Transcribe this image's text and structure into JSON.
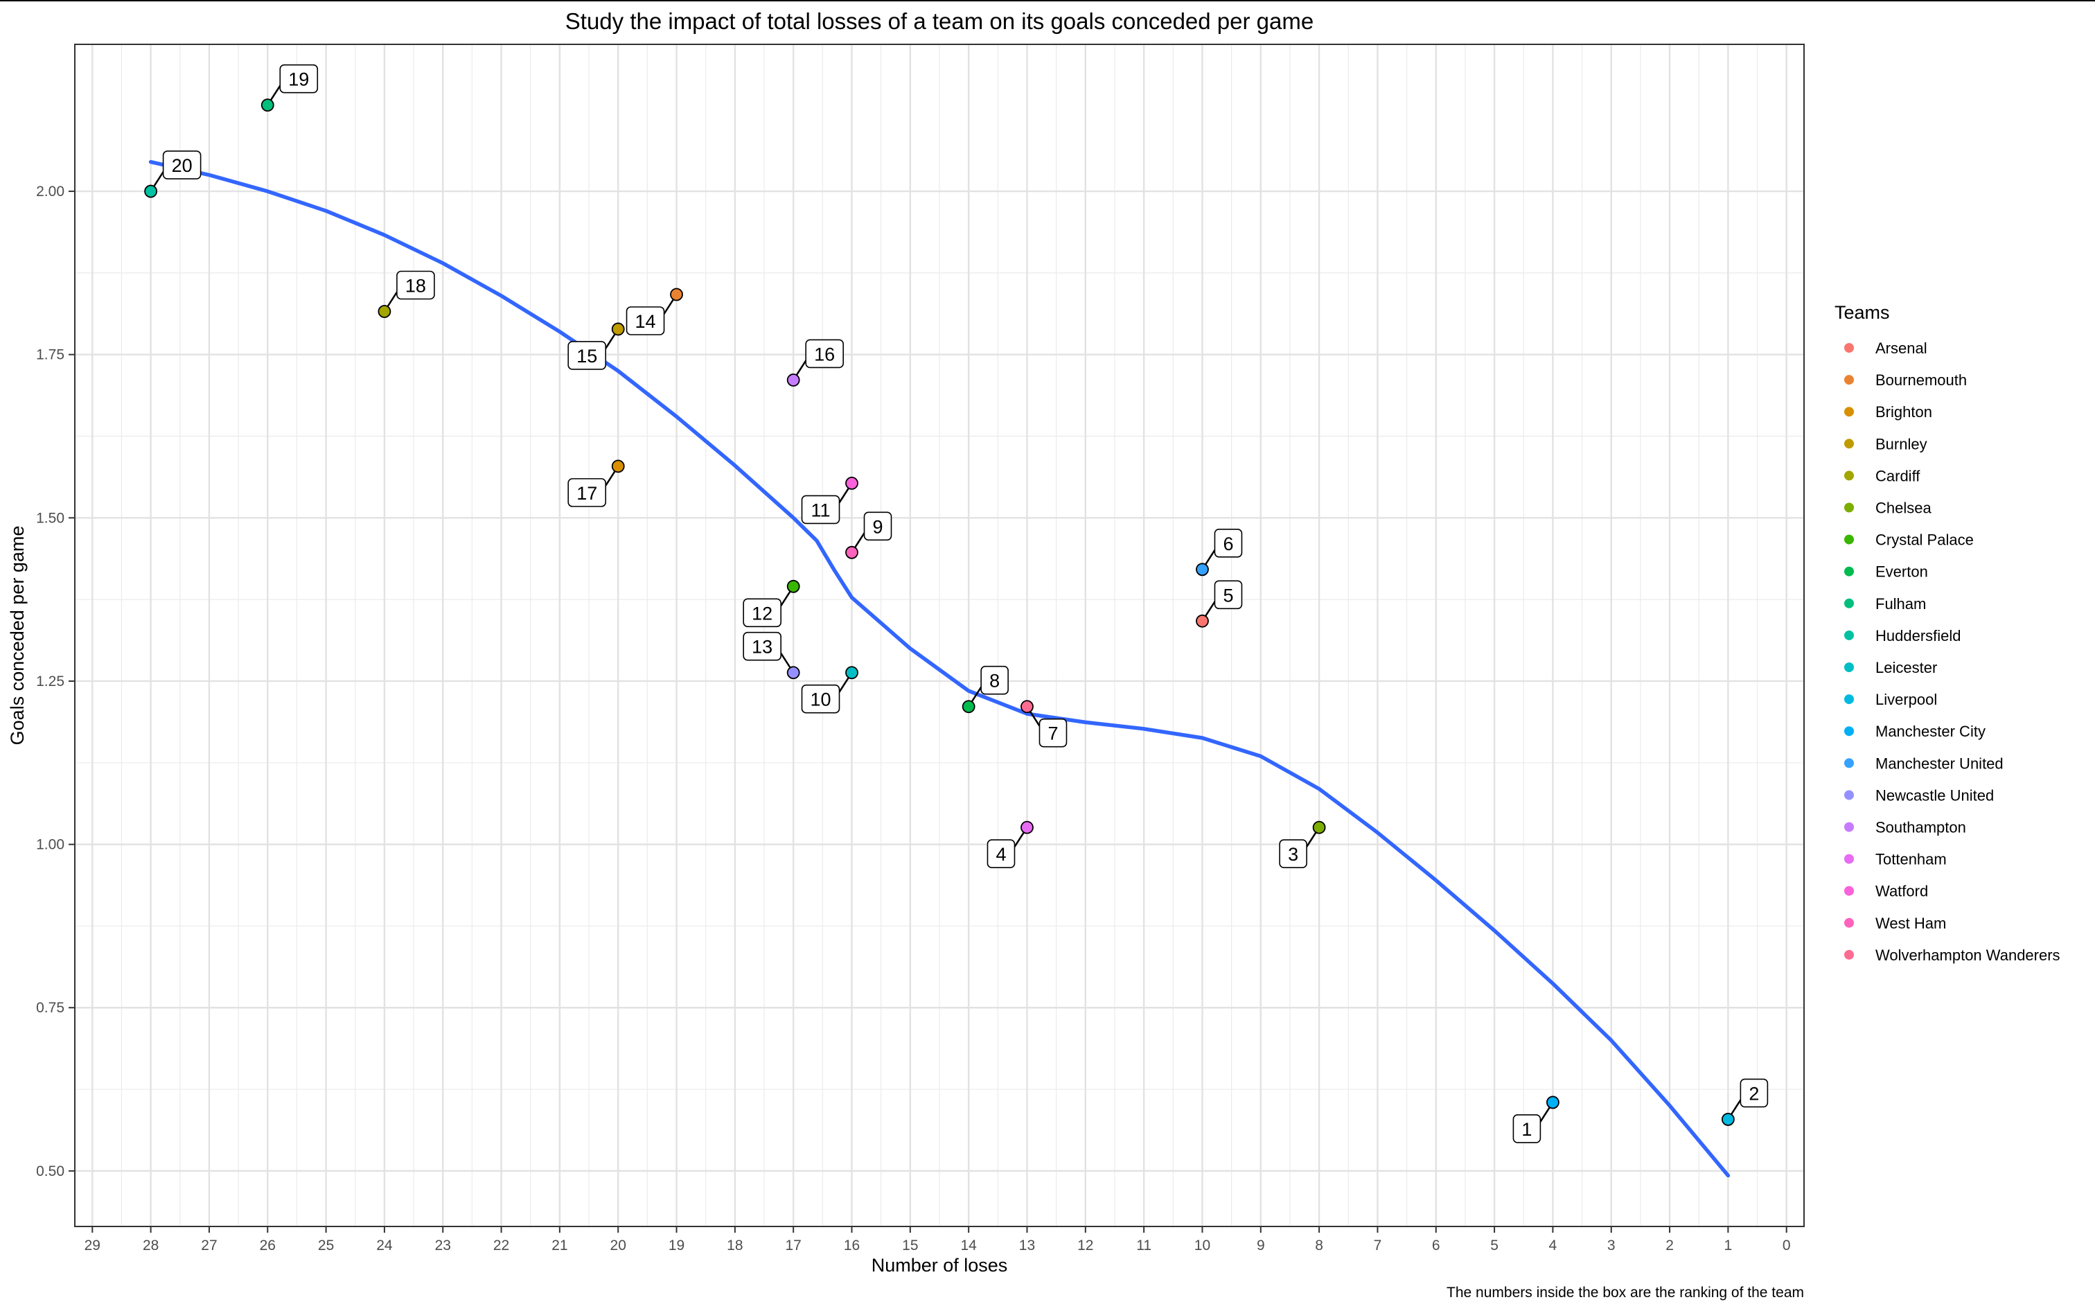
{
  "chart_data": {
    "type": "scatter",
    "title": "Study the impact of total losses of a team on its goals conceded per game",
    "xlabel": "Number of loses",
    "ylabel": "Goals conceded per game",
    "caption": "The numbers inside the box are the ranking of the team",
    "x_reversed": true,
    "xlim": [
      29.3,
      -0.3
    ],
    "ylim": [
      0.415,
      2.225
    ],
    "x_ticks": [
      "29",
      "28",
      "27",
      "26",
      "25",
      "24",
      "23",
      "22",
      "21",
      "20",
      "19",
      "18",
      "17",
      "16",
      "15",
      "14",
      "13",
      "12",
      "11",
      "10",
      "9",
      "8",
      "7",
      "6",
      "5",
      "4",
      "3",
      "2",
      "1",
      "0"
    ],
    "y_ticks": [
      "0.50",
      "0.75",
      "1.00",
      "1.25",
      "1.50",
      "1.75",
      "2.00"
    ],
    "grid": true,
    "legend": {
      "title": "Teams",
      "position": "right",
      "items": [
        {
          "name": "Arsenal",
          "color": "#F8766D"
        },
        {
          "name": "Bournemouth",
          "color": "#EA8331"
        },
        {
          "name": "Brighton",
          "color": "#D89000"
        },
        {
          "name": "Burnley",
          "color": "#C09B00"
        },
        {
          "name": "Cardiff",
          "color": "#A3A500"
        },
        {
          "name": "Chelsea",
          "color": "#7CAE00"
        },
        {
          "name": "Crystal Palace",
          "color": "#39B600"
        },
        {
          "name": "Everton",
          "color": "#00BB4E"
        },
        {
          "name": "Fulham",
          "color": "#00BF7D"
        },
        {
          "name": "Huddersfield",
          "color": "#00C1A3"
        },
        {
          "name": "Leicester",
          "color": "#00BFC4"
        },
        {
          "name": "Liverpool",
          "color": "#00BAE0"
        },
        {
          "name": "Manchester City",
          "color": "#00B0F6"
        },
        {
          "name": "Manchester United",
          "color": "#35A2FF"
        },
        {
          "name": "Newcastle United",
          "color": "#9590FF"
        },
        {
          "name": "Southampton",
          "color": "#C77CFF"
        },
        {
          "name": "Tottenham",
          "color": "#E76BF3"
        },
        {
          "name": "Watford",
          "color": "#FA62DB"
        },
        {
          "name": "West Ham",
          "color": "#FF62BC"
        },
        {
          "name": "Wolverhampton Wanderers",
          "color": "#FF6C91"
        }
      ]
    },
    "points": [
      {
        "team": "Manchester City",
        "losses": 4,
        "gpg": 0.605,
        "rank": "1",
        "dir": "bl"
      },
      {
        "team": "Liverpool",
        "losses": 1,
        "gpg": 0.579,
        "rank": "2",
        "dir": "tr"
      },
      {
        "team": "Chelsea",
        "losses": 8,
        "gpg": 1.026,
        "rank": "3",
        "dir": "bl"
      },
      {
        "team": "Tottenham",
        "losses": 13,
        "gpg": 1.026,
        "rank": "4",
        "dir": "bl"
      },
      {
        "team": "Arsenal",
        "losses": 10,
        "gpg": 1.342,
        "rank": "5",
        "dir": "tr"
      },
      {
        "team": "Manchester United",
        "losses": 10,
        "gpg": 1.421,
        "rank": "6",
        "dir": "tr"
      },
      {
        "team": "Wolverhampton Wanderers",
        "losses": 13,
        "gpg": 1.211,
        "rank": "7",
        "dir": "br"
      },
      {
        "team": "Everton",
        "losses": 14,
        "gpg": 1.211,
        "rank": "8",
        "dir": "tr"
      },
      {
        "team": "West Ham",
        "losses": 16,
        "gpg": 1.447,
        "rank": "9",
        "dir": "tr"
      },
      {
        "team": "Leicester",
        "losses": 16,
        "gpg": 1.263,
        "rank": "10",
        "dir": "bl"
      },
      {
        "team": "Watford",
        "losses": 16,
        "gpg": 1.553,
        "rank": "11",
        "dir": "bl"
      },
      {
        "team": "Crystal Palace",
        "losses": 17,
        "gpg": 1.395,
        "rank": "12",
        "dir": "bl"
      },
      {
        "team": "Newcastle United",
        "losses": 17,
        "gpg": 1.263,
        "rank": "13",
        "dir": "tl"
      },
      {
        "team": "Bournemouth",
        "losses": 19,
        "gpg": 1.842,
        "rank": "14",
        "dir": "bl"
      },
      {
        "team": "Burnley",
        "losses": 20,
        "gpg": 1.789,
        "rank": "15",
        "dir": "bl"
      },
      {
        "team": "Southampton",
        "losses": 17,
        "gpg": 1.711,
        "rank": "16",
        "dir": "tr"
      },
      {
        "team": "Brighton",
        "losses": 20,
        "gpg": 1.579,
        "rank": "17",
        "dir": "bl"
      },
      {
        "team": "Cardiff",
        "losses": 24,
        "gpg": 1.816,
        "rank": "18",
        "dir": "tr"
      },
      {
        "team": "Fulham",
        "losses": 26,
        "gpg": 2.132,
        "rank": "19",
        "dir": "tr"
      },
      {
        "team": "Huddersfield",
        "losses": 28,
        "gpg": 2.0,
        "rank": "20",
        "dir": "tr"
      }
    ],
    "smooth_line": {
      "color": "#3366FF",
      "x": [
        28,
        27,
        26,
        25,
        24,
        23,
        22,
        21,
        20,
        19,
        18,
        17,
        16.6,
        16.3,
        16,
        15,
        14,
        13,
        12,
        11,
        10,
        9,
        8,
        7,
        6,
        5,
        4,
        3,
        2,
        1
      ],
      "y": [
        2.045,
        2.025,
        2.0,
        1.97,
        1.933,
        1.89,
        1.84,
        1.785,
        1.725,
        1.655,
        1.58,
        1.5,
        1.465,
        1.42,
        1.378,
        1.3,
        1.235,
        1.2,
        1.187,
        1.177,
        1.163,
        1.135,
        1.085,
        1.018,
        0.945,
        0.868,
        0.787,
        0.7,
        0.6,
        0.493
      ]
    }
  }
}
